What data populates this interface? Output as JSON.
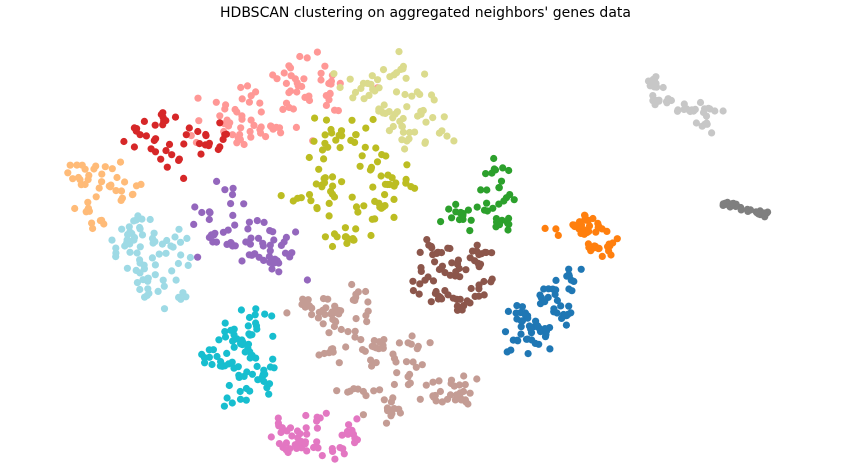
{
  "chart_data": {
    "type": "scatter",
    "title": "HDBSCAN clustering on aggregated neighbors' genes data",
    "xlabel": "",
    "ylabel": "",
    "axes_visible": false,
    "grid": false,
    "legend": "none",
    "xlim": [
      0,
      100
    ],
    "ylim": [
      0,
      50
    ],
    "series": [
      {
        "color": "#ff9896",
        "points": [
          [
            24,
            41
          ],
          [
            28,
            43
          ],
          [
            32,
            44
          ],
          [
            37,
            46
          ],
          [
            39,
            44
          ],
          [
            35,
            42
          ],
          [
            30,
            39
          ],
          [
            25,
            38
          ]
        ],
        "spread": [
          4.6,
          2.0
        ],
        "count": 90
      },
      {
        "color": "#dbdb8d",
        "points": [
          [
            42,
            44
          ],
          [
            46,
            45
          ],
          [
            49,
            43
          ],
          [
            51,
            40
          ],
          [
            50,
            37
          ],
          [
            47,
            39
          ],
          [
            44,
            41
          ]
        ],
        "spread": [
          3.2,
          2.3
        ],
        "count": 70
      },
      {
        "color": "#d62728",
        "points": [
          [
            16,
            40
          ],
          [
            19,
            38
          ],
          [
            22,
            37
          ],
          [
            15,
            36
          ],
          [
            18,
            35
          ],
          [
            13,
            38
          ],
          [
            24,
            38
          ]
        ],
        "spread": [
          2.4,
          1.5
        ],
        "count": 45
      },
      {
        "color": "#ffbb78",
        "points": [
          [
            5,
            33
          ],
          [
            7,
            34
          ],
          [
            10,
            33
          ],
          [
            12,
            31
          ],
          [
            6,
            29
          ],
          [
            8,
            28
          ],
          [
            9,
            32
          ]
        ],
        "spread": [
          1.8,
          1.8
        ],
        "count": 45
      },
      {
        "color": "#9edae5",
        "points": [
          [
            11,
            25
          ],
          [
            13,
            23
          ],
          [
            16,
            21
          ],
          [
            18,
            19
          ],
          [
            14,
            20
          ],
          [
            17,
            25
          ],
          [
            13,
            27
          ]
        ],
        "spread": [
          2.4,
          2.0
        ],
        "count": 75
      },
      {
        "color": "#9467bd",
        "points": [
          [
            22,
            29
          ],
          [
            25,
            31
          ],
          [
            27,
            27
          ],
          [
            29,
            25
          ],
          [
            32,
            26
          ],
          [
            31,
            23
          ],
          [
            25,
            25
          ],
          [
            22,
            26
          ]
        ],
        "spread": [
          2.5,
          2.0
        ],
        "count": 65
      },
      {
        "color": "#bcbd22",
        "points": [
          [
            37,
            37
          ],
          [
            41,
            38
          ],
          [
            43,
            34
          ],
          [
            46,
            32
          ],
          [
            44,
            30
          ],
          [
            41,
            27
          ],
          [
            38,
            32
          ],
          [
            35,
            31
          ]
        ],
        "spread": [
          2.8,
          2.3
        ],
        "count": 100
      },
      {
        "color": "#2ca02c",
        "points": [
          [
            59,
            34
          ],
          [
            61,
            31
          ],
          [
            58,
            30
          ],
          [
            56,
            28
          ],
          [
            54,
            29
          ],
          [
            60,
            28
          ]
        ],
        "spread": [
          1.6,
          1.6
        ],
        "count": 45
      },
      {
        "color": "#ff7f0e",
        "points": [
          [
            67,
            27
          ],
          [
            70,
            27
          ],
          [
            73,
            27
          ],
          [
            74,
            25
          ],
          [
            72,
            25
          ],
          [
            71,
            28
          ]
        ],
        "spread": [
          1.3,
          1.0
        ],
        "count": 45
      },
      {
        "color": "#8c564b",
        "points": [
          [
            51,
            24
          ],
          [
            54,
            22
          ],
          [
            57,
            20
          ],
          [
            55,
            18
          ],
          [
            52,
            19
          ],
          [
            50,
            21
          ],
          [
            57,
            24
          ]
        ],
        "spread": [
          2.0,
          1.7
        ],
        "count": 75
      },
      {
        "color": "#1f77b4",
        "points": [
          [
            66,
            19
          ],
          [
            69,
            21
          ],
          [
            68,
            17
          ],
          [
            65,
            15
          ],
          [
            62,
            14
          ],
          [
            63,
            17
          ]
        ],
        "spread": [
          1.8,
          1.4
        ],
        "count": 75
      },
      {
        "color": "#17becf",
        "points": [
          [
            24,
            15
          ],
          [
            27,
            13
          ],
          [
            29,
            10
          ],
          [
            26,
            8
          ],
          [
            24,
            11
          ],
          [
            22,
            12
          ],
          [
            28,
            16
          ]
        ],
        "spread": [
          1.8,
          1.8
        ],
        "count": 80
      },
      {
        "color": "#c49c94",
        "points": [
          [
            37,
            17
          ],
          [
            40,
            15
          ],
          [
            44,
            13
          ],
          [
            48,
            10
          ],
          [
            52,
            8
          ],
          [
            55,
            8
          ],
          [
            49,
            13
          ],
          [
            46,
            6
          ],
          [
            42,
            8
          ],
          [
            38,
            13
          ],
          [
            35,
            18
          ],
          [
            41,
            19
          ]
        ],
        "spread": [
          2.4,
          1.7
        ],
        "count": 140
      },
      {
        "color": "#e377c2",
        "points": [
          [
            31,
            4
          ],
          [
            34,
            2
          ],
          [
            38,
            1
          ],
          [
            40,
            3
          ],
          [
            36,
            5
          ],
          [
            32,
            2
          ]
        ],
        "spread": [
          1.8,
          1.3
        ],
        "count": 55
      },
      {
        "color": "#c7c7c7",
        "points": [
          [
            80,
            44
          ],
          [
            82,
            42
          ],
          [
            84,
            41
          ],
          [
            86,
            39
          ],
          [
            87,
            41
          ],
          [
            80,
            42
          ]
        ],
        "spread": [
          1.1,
          0.8
        ],
        "count": 45
      },
      {
        "color": "#7f7f7f",
        "points": [
          [
            89,
            30
          ],
          [
            90,
            29.8
          ],
          [
            91,
            29.5
          ],
          [
            92,
            29.2
          ],
          [
            93,
            29.0
          ],
          [
            94,
            28.8
          ]
        ],
        "spread": [
          0.7,
          0.35
        ],
        "count": 28
      }
    ]
  }
}
